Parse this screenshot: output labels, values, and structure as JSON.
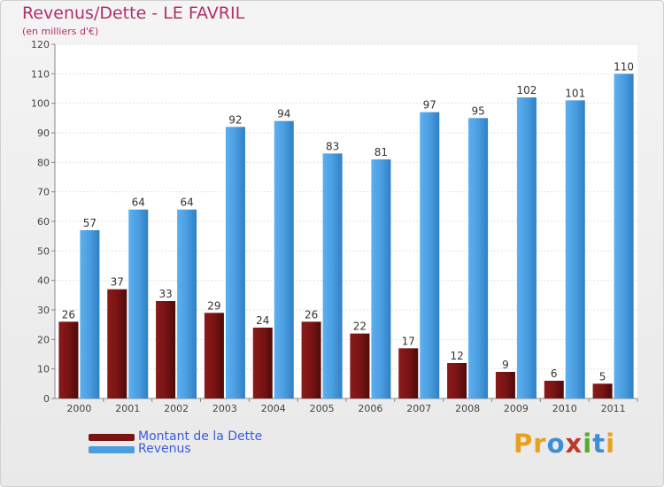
{
  "header": {
    "title": "Revenus/Dette - LE FAVRIL",
    "subtitle": "(en milliers d'€)"
  },
  "colors": {
    "dette": "#7a1414",
    "revenus": "#4a9ee0",
    "title": "#b0306a",
    "legend_text": "#3c5bd8"
  },
  "chart_data": {
    "type": "bar",
    "categories": [
      "2000",
      "2001",
      "2002",
      "2003",
      "2004",
      "2005",
      "2006",
      "2007",
      "2008",
      "2009",
      "2010",
      "2011"
    ],
    "series": [
      {
        "name": "Montant de la Dette",
        "values": [
          26,
          37,
          33,
          29,
          24,
          26,
          22,
          17,
          12,
          9,
          6,
          5
        ]
      },
      {
        "name": "Revenus",
        "values": [
          57,
          64,
          64,
          92,
          94,
          83,
          81,
          97,
          95,
          102,
          101,
          110
        ]
      }
    ],
    "yticks": [
      "0",
      "10",
      "20",
      "30",
      "40",
      "50",
      "60",
      "70",
      "80",
      "90",
      "100",
      "110",
      "120"
    ],
    "ylim": [
      0,
      120
    ],
    "grid": true,
    "legend_position": "bottom-left"
  },
  "logo": {
    "letters": [
      "P",
      "r",
      "o",
      "x",
      "i",
      "t",
      "i"
    ],
    "colors": [
      "#e8a020",
      "#e8a020",
      "#3a8fd8",
      "#c0382b",
      "#5aaa30",
      "#3a8fd8",
      "#e8a020"
    ]
  }
}
